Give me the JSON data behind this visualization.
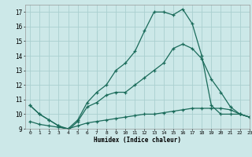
{
  "xlabel": "Humidex (Indice chaleur)",
  "bg_color": "#cce8e8",
  "grid_color": "#aacfcf",
  "line_color": "#1a6b5a",
  "xlim": [
    -0.5,
    23
  ],
  "ylim": [
    9,
    17.5
  ],
  "xtick_labels": [
    "0",
    "1",
    "2",
    "3",
    "4",
    "5",
    "6",
    "7",
    "8",
    "9",
    "10",
    "11",
    "12",
    "13",
    "14",
    "15",
    "16",
    "17",
    "18",
    "19",
    "20",
    "21",
    "22",
    "23"
  ],
  "ytick_labels": [
    "9",
    "10",
    "11",
    "12",
    "13",
    "14",
    "15",
    "16",
    "17"
  ],
  "ytick_vals": [
    9,
    10,
    11,
    12,
    13,
    14,
    15,
    16,
    17
  ],
  "line1_x": [
    0,
    1,
    2,
    3,
    4,
    5,
    6,
    7,
    8,
    9,
    10,
    11,
    12,
    13,
    14,
    15,
    16,
    17,
    18,
    19,
    20,
    21,
    22,
    23
  ],
  "line1_y": [
    10.6,
    10.0,
    9.6,
    9.2,
    9.0,
    9.6,
    10.8,
    11.5,
    12.0,
    13.0,
    13.5,
    14.3,
    15.7,
    17.0,
    17.0,
    16.8,
    17.2,
    16.2,
    14.0,
    10.6,
    10.0,
    10.0,
    10.0,
    9.8
  ],
  "line2_x": [
    0,
    1,
    2,
    3,
    4,
    5,
    6,
    7,
    8,
    9,
    10,
    11,
    12,
    13,
    14,
    15,
    16,
    17,
    18,
    19,
    20,
    21,
    22,
    23
  ],
  "line2_y": [
    10.6,
    10.0,
    9.6,
    9.2,
    8.9,
    9.5,
    10.5,
    10.8,
    11.3,
    11.5,
    11.5,
    12.0,
    12.5,
    13.0,
    13.5,
    14.5,
    14.8,
    14.5,
    13.8,
    12.4,
    11.5,
    10.5,
    10.0,
    9.8
  ],
  "line3_x": [
    0,
    1,
    2,
    3,
    4,
    5,
    6,
    7,
    8,
    9,
    10,
    11,
    12,
    13,
    14,
    15,
    16,
    17,
    18,
    19,
    20,
    21,
    22,
    23
  ],
  "line3_y": [
    9.5,
    9.3,
    9.2,
    9.1,
    9.0,
    9.2,
    9.4,
    9.5,
    9.6,
    9.7,
    9.8,
    9.9,
    10.0,
    10.0,
    10.1,
    10.2,
    10.3,
    10.4,
    10.4,
    10.4,
    10.4,
    10.3,
    10.0,
    9.8
  ]
}
